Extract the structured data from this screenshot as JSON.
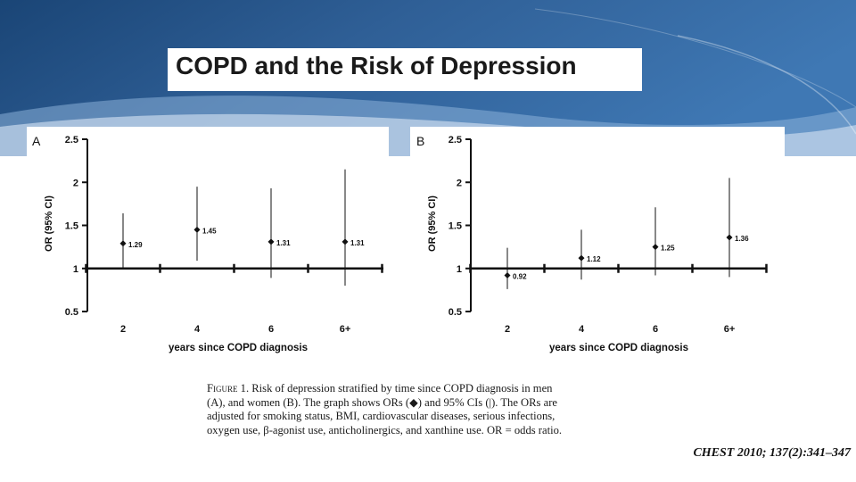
{
  "title": "COPD and the Risk of Depression",
  "caption": {
    "label": "Figure 1.",
    "text": "Risk of depression stratified by time since COPD diagnosis in men (A), and women (B). The graph shows ORs (◆) and 95% CIs (|). The ORs are adjusted for smoking status, BMI, cardiovascular diseases, serious infections, oxygen use, β-agonist use, anticholinergics, and xanthine use. OR = odds ratio."
  },
  "citation": "CHEST 2010; 137(2):341–347",
  "colors": {
    "banner_dark": "#1d4a7e",
    "banner_mid": "#3a6fa8",
    "banner_light": "#6f9ccb",
    "ink": "#111111"
  },
  "chart_data": [
    {
      "type": "scatter",
      "panel": "A",
      "categories": [
        "2",
        "4",
        "6",
        "6+"
      ],
      "values": [
        1.29,
        1.45,
        1.31,
        1.31
      ],
      "value_labels": [
        "1.29",
        "1.45",
        "1.31",
        "1.31"
      ],
      "ci_lower": [
        1.0,
        1.09,
        0.89,
        0.8
      ],
      "ci_upper": [
        1.64,
        1.95,
        1.93,
        2.15
      ],
      "ylabel": "OR (95% CI)",
      "xlabel": "years since COPD diagnosis",
      "ylim": [
        0.5,
        2.5
      ],
      "yticks": [
        0.5,
        1,
        1.5,
        2,
        2.5
      ],
      "ytick_labels": [
        "0.5",
        "1",
        "1.5",
        "2",
        "2.5"
      ],
      "reference_line": 1
    },
    {
      "type": "scatter",
      "panel": "B",
      "categories": [
        "2",
        "4",
        "6",
        "6+"
      ],
      "values": [
        0.92,
        1.12,
        1.25,
        1.36
      ],
      "value_labels": [
        "0.92",
        "1.12",
        "1.25",
        "1.36"
      ],
      "ci_lower": [
        0.76,
        0.87,
        0.92,
        0.9
      ],
      "ci_upper": [
        1.24,
        1.45,
        1.71,
        2.05
      ],
      "ylabel": "OR (95% CI)",
      "xlabel": "years since COPD diagnosis",
      "ylim": [
        0.5,
        2.5
      ],
      "yticks": [
        0.5,
        1,
        1.5,
        2,
        2.5
      ],
      "ytick_labels": [
        "0.5",
        "1",
        "1.5",
        "2",
        "2.5"
      ],
      "reference_line": 1
    }
  ]
}
